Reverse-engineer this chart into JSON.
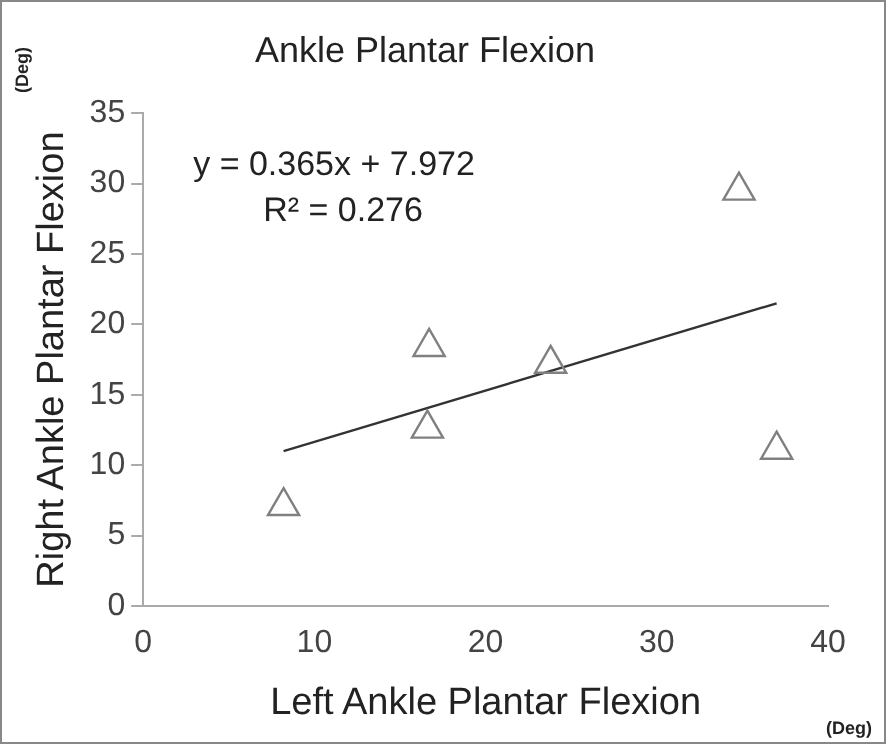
{
  "chart_data": {
    "type": "scatter",
    "title": "Ankle Plantar Flexion",
    "xlabel": "Left Ankle Plantar Flexion",
    "ylabel": "Right Ankle Plantar Flexion",
    "annotations": [
      "y = 0.365x + 7.972",
      "R² = 0.276",
      "(Deg)",
      "(Deg)"
    ],
    "series": [
      {
        "color": "#808080",
        "marker": "triangle",
        "x": [
          8.2,
          16.7,
          16.6,
          23.8,
          34.8,
          37.0
        ],
        "values": [
          7.1,
          18.4,
          12.6,
          17.2,
          29.5,
          11.1
        ]
      },
      {
        "type": "line",
        "color": "#333333",
        "marker": "none",
        "x": [
          8.2,
          37.0
        ],
        "values": [
          11.0,
          21.5
        ]
      }
    ],
    "xlim": [
      0,
      40
    ],
    "xticks": [
      0,
      10,
      20,
      30,
      40
    ],
    "ylim": [
      0,
      35
    ],
    "yticks": [
      0,
      5,
      10,
      15,
      20,
      25,
      30,
      35
    ],
    "grid": false,
    "legend": false
  }
}
